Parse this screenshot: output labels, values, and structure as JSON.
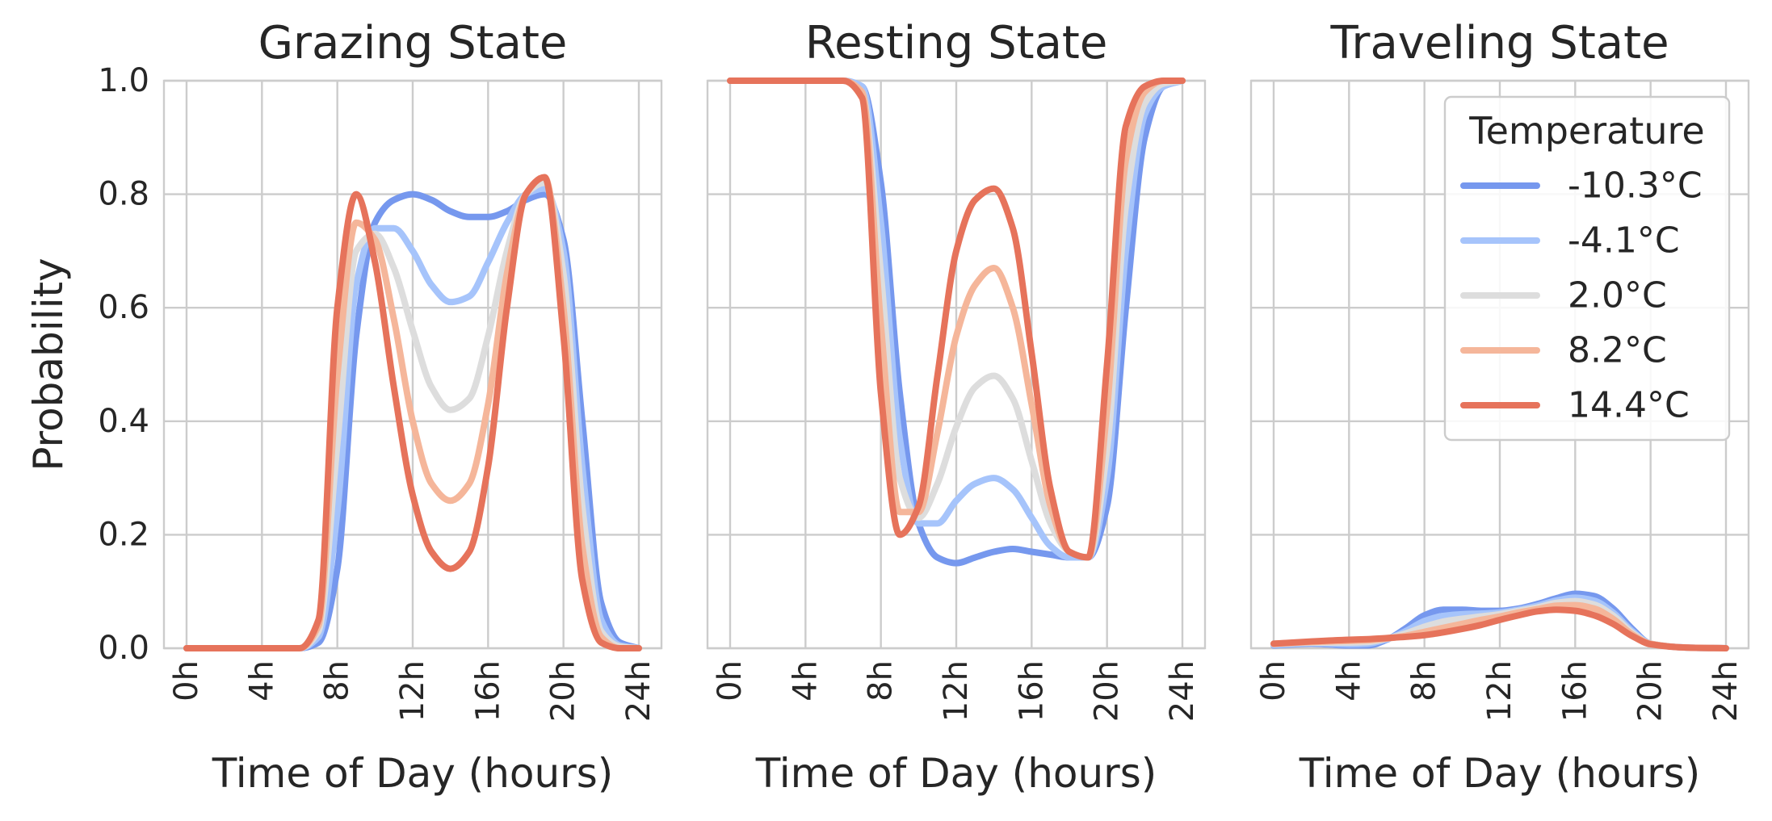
{
  "chart_data": [
    {
      "type": "line",
      "title": "Grazing State",
      "xlabel": "Time of Day (hours)",
      "ylabel": "Probability",
      "xlim": [
        -1.2,
        25.2
      ],
      "ylim": [
        0.0,
        1.0
      ],
      "xticks": [
        0,
        4,
        8,
        12,
        16,
        20,
        24
      ],
      "xtick_labels": [
        "0h",
        "4h",
        "8h",
        "12h",
        "16h",
        "20h",
        "24h"
      ],
      "yticks": [
        0.0,
        0.2,
        0.4,
        0.6,
        0.8,
        1.0
      ],
      "ytick_labels": [
        "0.0",
        "0.2",
        "0.4",
        "0.6",
        "0.8",
        "1.0"
      ],
      "grid": true,
      "series": [
        {
          "name": "-10.3°C",
          "color": "#7698ee",
          "x": [
            0,
            6,
            7,
            8,
            9,
            10,
            11,
            12,
            13,
            14,
            15,
            16,
            17,
            18,
            19,
            20,
            21,
            22,
            23,
            24
          ],
          "y": [
            0,
            0,
            0.01,
            0.14,
            0.55,
            0.75,
            0.79,
            0.8,
            0.79,
            0.77,
            0.76,
            0.76,
            0.77,
            0.79,
            0.8,
            0.72,
            0.4,
            0.08,
            0.01,
            0
          ]
        },
        {
          "name": "-4.1°C",
          "color": "#a6c4fb",
          "x": [
            0,
            6,
            7,
            8,
            9,
            10,
            11,
            12,
            13,
            14,
            15,
            16,
            17,
            18,
            19,
            20,
            21,
            22,
            23,
            24
          ],
          "y": [
            0,
            0,
            0.02,
            0.24,
            0.64,
            0.74,
            0.74,
            0.7,
            0.64,
            0.61,
            0.62,
            0.68,
            0.75,
            0.8,
            0.81,
            0.7,
            0.32,
            0.05,
            0.005,
            0
          ]
        },
        {
          "name": "2.0°C",
          "color": "#dddddd",
          "x": [
            0,
            6,
            7,
            8,
            9,
            10,
            11,
            12,
            13,
            14,
            15,
            16,
            17,
            18,
            19,
            20,
            21,
            22,
            23,
            24
          ],
          "y": [
            0,
            0,
            0.03,
            0.36,
            0.7,
            0.73,
            0.67,
            0.56,
            0.46,
            0.42,
            0.44,
            0.55,
            0.7,
            0.8,
            0.82,
            0.66,
            0.25,
            0.03,
            0.003,
            0
          ]
        },
        {
          "name": "8.2°C",
          "color": "#f5b69a",
          "x": [
            0,
            6,
            7,
            8,
            9,
            10,
            11,
            12,
            13,
            14,
            15,
            16,
            17,
            18,
            19,
            20,
            21,
            22,
            23,
            24
          ],
          "y": [
            0,
            0,
            0.04,
            0.48,
            0.75,
            0.72,
            0.58,
            0.4,
            0.29,
            0.26,
            0.29,
            0.43,
            0.66,
            0.8,
            0.83,
            0.6,
            0.18,
            0.02,
            0,
            0
          ]
        },
        {
          "name": "14.4°C",
          "color": "#e6735b",
          "x": [
            0,
            6,
            7,
            8,
            9,
            10,
            11,
            12,
            13,
            14,
            15,
            16,
            17,
            18,
            19,
            20,
            21,
            22,
            23,
            24
          ],
          "y": [
            0,
            0,
            0.05,
            0.6,
            0.8,
            0.68,
            0.46,
            0.27,
            0.17,
            0.14,
            0.17,
            0.32,
            0.6,
            0.8,
            0.83,
            0.55,
            0.12,
            0.01,
            0,
            0
          ]
        }
      ]
    },
    {
      "type": "line",
      "title": "Resting State",
      "xlabel": "Time of Day (hours)",
      "ylabel": "",
      "xlim": [
        -1.2,
        25.2
      ],
      "ylim": [
        0.0,
        1.0
      ],
      "xticks": [
        0,
        4,
        8,
        12,
        16,
        20,
        24
      ],
      "xtick_labels": [
        "0h",
        "4h",
        "8h",
        "12h",
        "16h",
        "20h",
        "24h"
      ],
      "grid": true,
      "series": [
        {
          "name": "-10.3°C",
          "color": "#7698ee",
          "x": [
            0,
            5,
            6,
            7,
            8,
            9,
            10,
            11,
            12,
            13,
            14,
            15,
            16,
            17,
            18,
            19,
            20,
            21,
            22,
            23,
            24
          ],
          "y": [
            1,
            1,
            1,
            0.99,
            0.82,
            0.45,
            0.22,
            0.16,
            0.15,
            0.16,
            0.17,
            0.175,
            0.17,
            0.165,
            0.16,
            0.16,
            0.25,
            0.6,
            0.9,
            0.99,
            1
          ]
        },
        {
          "name": "-4.1°C",
          "color": "#a6c4fb",
          "x": [
            0,
            5,
            6,
            7,
            8,
            9,
            10,
            11,
            12,
            13,
            14,
            15,
            16,
            17,
            18,
            19,
            20,
            21,
            22,
            23,
            24
          ],
          "y": [
            1,
            1,
            1,
            0.99,
            0.75,
            0.37,
            0.22,
            0.22,
            0.26,
            0.29,
            0.3,
            0.28,
            0.23,
            0.18,
            0.16,
            0.16,
            0.3,
            0.7,
            0.94,
            0.99,
            1
          ]
        },
        {
          "name": "2.0°C",
          "color": "#dddddd",
          "x": [
            0,
            5,
            6,
            7,
            8,
            9,
            10,
            11,
            12,
            13,
            14,
            15,
            16,
            17,
            18,
            19,
            20,
            21,
            22,
            23,
            24
          ],
          "y": [
            1,
            1,
            1,
            0.98,
            0.66,
            0.3,
            0.23,
            0.29,
            0.39,
            0.46,
            0.48,
            0.44,
            0.33,
            0.22,
            0.17,
            0.16,
            0.35,
            0.78,
            0.96,
            0.995,
            1
          ]
        },
        {
          "name": "8.2°C",
          "color": "#f5b69a",
          "x": [
            0,
            5,
            6,
            7,
            8,
            9,
            10,
            11,
            12,
            13,
            14,
            15,
            16,
            17,
            18,
            19,
            20,
            21,
            22,
            23,
            24
          ],
          "y": [
            1,
            1,
            1,
            0.98,
            0.57,
            0.24,
            0.24,
            0.38,
            0.55,
            0.64,
            0.67,
            0.6,
            0.43,
            0.25,
            0.17,
            0.16,
            0.42,
            0.86,
            0.98,
            1,
            1
          ]
        },
        {
          "name": "14.4°C",
          "color": "#e6735b",
          "x": [
            0,
            5,
            6,
            7,
            8,
            9,
            10,
            11,
            12,
            13,
            14,
            15,
            16,
            17,
            18,
            19,
            20,
            21,
            22,
            23,
            24
          ],
          "y": [
            1,
            1,
            1,
            0.97,
            0.45,
            0.2,
            0.25,
            0.48,
            0.7,
            0.79,
            0.81,
            0.74,
            0.52,
            0.28,
            0.17,
            0.16,
            0.5,
            0.92,
            0.99,
            1,
            1
          ]
        }
      ]
    },
    {
      "type": "line",
      "title": "Traveling State",
      "xlabel": "Time of Day (hours)",
      "ylabel": "",
      "xlim": [
        -1.2,
        25.2
      ],
      "ylim": [
        0.0,
        1.0
      ],
      "xticks": [
        0,
        4,
        8,
        12,
        16,
        20,
        24
      ],
      "xtick_labels": [
        "0h",
        "4h",
        "8h",
        "12h",
        "16h",
        "20h",
        "24h"
      ],
      "grid": true,
      "legend": {
        "title": "Temperature",
        "placement": "top-right"
      },
      "series": [
        {
          "name": "-10.3°C",
          "color": "#7698ee",
          "x": [
            0,
            2,
            4,
            5,
            6,
            7,
            8,
            9,
            10,
            11,
            12,
            13,
            14,
            15,
            16,
            17,
            18,
            19,
            20,
            22,
            24
          ],
          "y": [
            0.005,
            0.008,
            0.005,
            0.005,
            0.015,
            0.035,
            0.058,
            0.068,
            0.068,
            0.066,
            0.066,
            0.07,
            0.078,
            0.088,
            0.096,
            0.092,
            0.07,
            0.035,
            0.008,
            0.001,
            0
          ]
        },
        {
          "name": "-4.1°C",
          "color": "#a6c4fb",
          "x": [
            0,
            2,
            4,
            5,
            6,
            7,
            8,
            9,
            10,
            11,
            12,
            13,
            14,
            15,
            16,
            17,
            18,
            19,
            20,
            22,
            24
          ],
          "y": [
            0.006,
            0.009,
            0.007,
            0.008,
            0.016,
            0.03,
            0.048,
            0.057,
            0.06,
            0.061,
            0.063,
            0.068,
            0.075,
            0.084,
            0.089,
            0.084,
            0.063,
            0.031,
            0.008,
            0.001,
            0
          ]
        },
        {
          "name": "2.0°C",
          "color": "#dddddd",
          "x": [
            0,
            2,
            4,
            5,
            6,
            7,
            8,
            9,
            10,
            11,
            12,
            13,
            14,
            15,
            16,
            17,
            18,
            19,
            20,
            22,
            24
          ],
          "y": [
            0.007,
            0.01,
            0.01,
            0.011,
            0.017,
            0.026,
            0.038,
            0.047,
            0.052,
            0.056,
            0.06,
            0.066,
            0.072,
            0.08,
            0.083,
            0.077,
            0.058,
            0.028,
            0.008,
            0.001,
            0
          ]
        },
        {
          "name": "8.2°C",
          "color": "#f5b69a",
          "x": [
            0,
            2,
            4,
            5,
            6,
            7,
            8,
            9,
            10,
            11,
            12,
            13,
            14,
            15,
            16,
            17,
            18,
            19,
            20,
            22,
            24
          ],
          "y": [
            0.008,
            0.011,
            0.013,
            0.014,
            0.017,
            0.022,
            0.029,
            0.036,
            0.043,
            0.05,
            0.056,
            0.063,
            0.069,
            0.075,
            0.076,
            0.07,
            0.052,
            0.025,
            0.008,
            0.001,
            0
          ]
        },
        {
          "name": "14.4°C",
          "color": "#e6735b",
          "x": [
            0,
            2,
            4,
            5,
            6,
            7,
            8,
            9,
            10,
            11,
            12,
            13,
            14,
            15,
            16,
            17,
            18,
            19,
            20,
            22,
            24
          ],
          "y": [
            0.008,
            0.012,
            0.015,
            0.016,
            0.018,
            0.02,
            0.023,
            0.028,
            0.034,
            0.041,
            0.05,
            0.058,
            0.065,
            0.068,
            0.066,
            0.058,
            0.043,
            0.022,
            0.007,
            0.001,
            0
          ]
        }
      ]
    }
  ]
}
